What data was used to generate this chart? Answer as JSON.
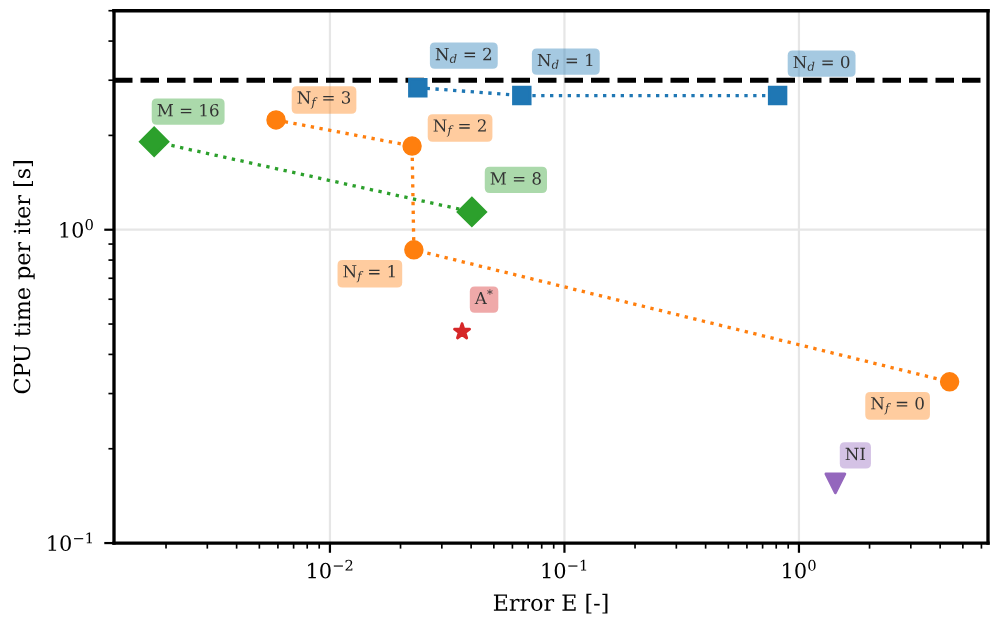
{
  "chart_data": {
    "type": "line",
    "xlabel": "Error E [-]",
    "ylabel": "CPU time per iter [s]",
    "log": "xy",
    "xlim": [
      0.0012,
      6.4
    ],
    "ylim": [
      0.1,
      5.0
    ],
    "xticks": [
      {
        "value": 0.01,
        "label": "10$^{−2}$"
      },
      {
        "value": 0.1,
        "label": "10$^{−1}$"
      },
      {
        "value": 1,
        "label": "10$^{0}$"
      }
    ],
    "yticks": [
      {
        "value": 0.1,
        "label": "10$^{−1}$"
      },
      {
        "value": 1,
        "label": "10$^{0}$"
      }
    ],
    "grid": true,
    "series": [
      {
        "marker": "square",
        "line_style": "dotted",
        "color": "#1f77b4",
        "x": [
          0.0237,
          0.0658,
          0.811
        ],
        "values": [
          2.84,
          2.68,
          2.68
        ]
      },
      {
        "marker": "circle",
        "line_style": "dotted",
        "color": "#ff7f0e",
        "x": [
          0.00589,
          0.0224,
          0.0228,
          4.39
        ],
        "values": [
          2.24,
          1.85,
          0.863,
          0.327
        ]
      },
      {
        "marker": "diamond",
        "line_style": "dotted",
        "color": "#2ca02c",
        "x": [
          0.00178,
          0.0403
        ],
        "values": [
          1.91,
          1.14
        ]
      },
      {
        "type": "scatter",
        "marker": "star",
        "color": "#d62728",
        "x": [
          0.0366
        ],
        "values": [
          0.473
        ]
      },
      {
        "type": "scatter",
        "marker": "triangle",
        "color": "#9467bd",
        "x": [
          1.43
        ],
        "values": [
          0.155
        ]
      }
    ],
    "ref_lines": [
      {
        "axis": "y",
        "value": 3,
        "color": "#000000",
        "line_style": "dashed"
      }
    ],
    "annotations": [
      {
        "text": "N$_{d}$ = 2",
        "x": 0.0237,
        "y": 2.84
      },
      {
        "text": "N$_{d}$ = 1",
        "x": 0.0658,
        "y": 2.68
      },
      {
        "text": "N$_{d}$ = 0",
        "x": 0.811,
        "y": 2.68
      },
      {
        "text": "N$_{f}$ = 3",
        "x": 0.00589,
        "y": 2.24
      },
      {
        "text": "N$_{f}$ = 2",
        "x": 0.0224,
        "y": 1.85
      },
      {
        "text": "N$_{f}$ = 1",
        "x": 0.0228,
        "y": 0.863
      },
      {
        "text": "N$_{f}$ = 0",
        "x": 4.39,
        "y": 0.327
      },
      {
        "text": "M = 16",
        "x": 0.00178,
        "y": 1.91
      },
      {
        "text": "M = 8",
        "x": 0.0403,
        "y": 1.14
      },
      {
        "text": "A$^{*}$",
        "x": 0.0366,
        "y": 0.473
      },
      {
        "text": "NI",
        "x": 1.43,
        "y": 0.155
      }
    ]
  }
}
